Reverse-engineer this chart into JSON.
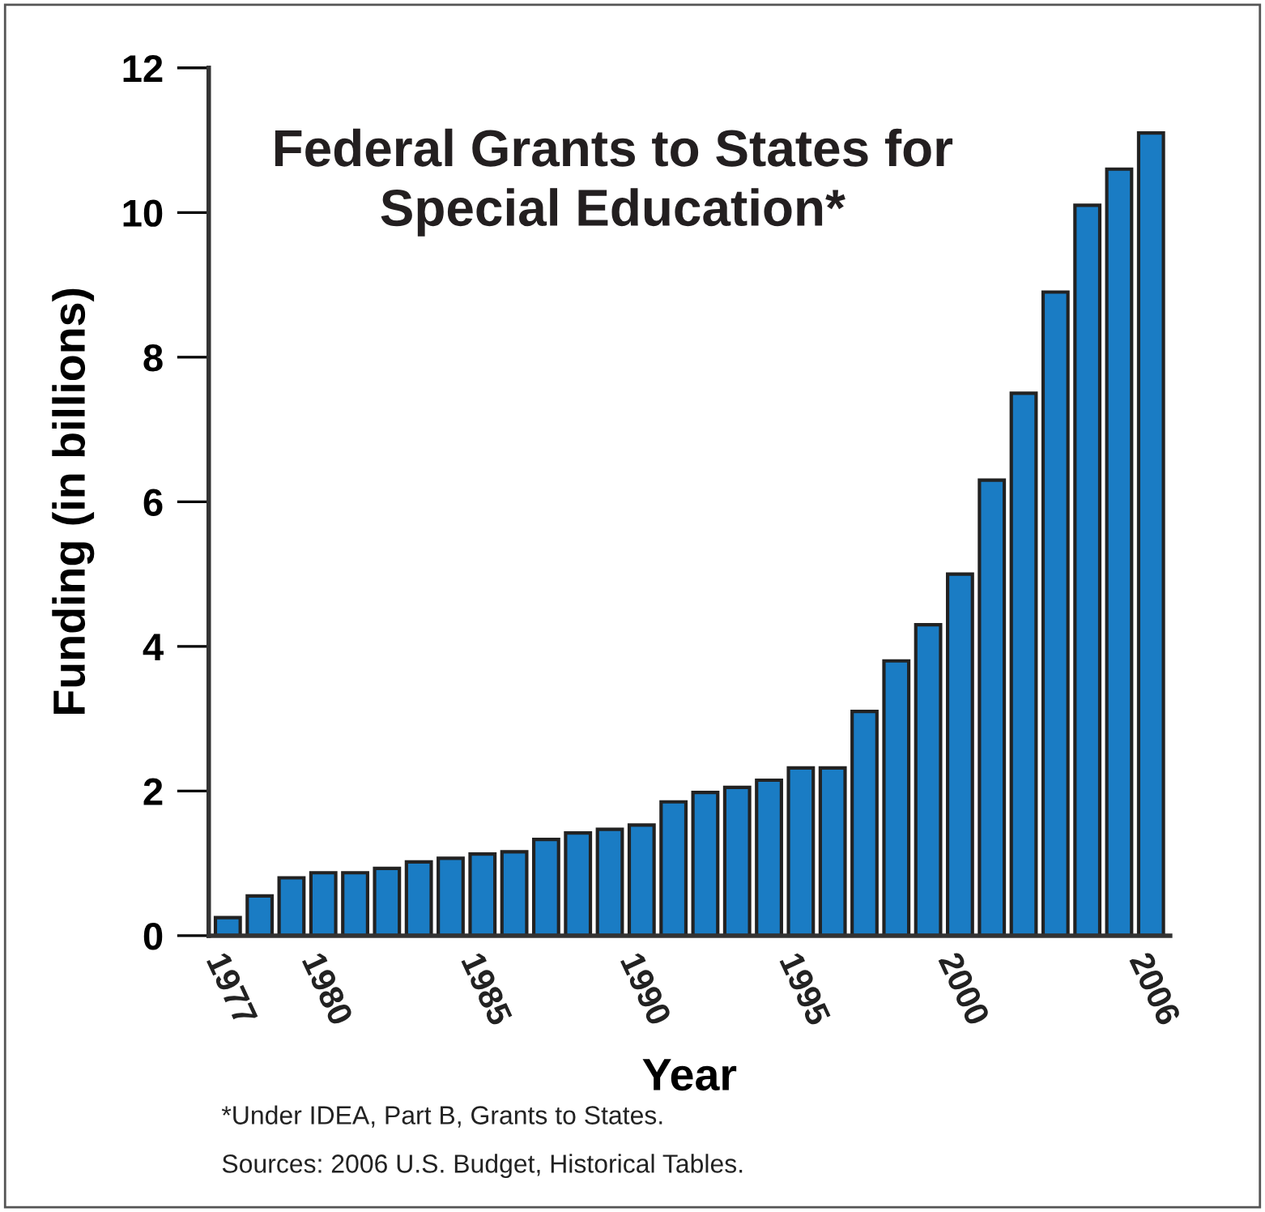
{
  "chart_data": {
    "type": "bar",
    "title": "Federal Grants to States for\nSpecial Education*",
    "xlabel": "Year",
    "ylabel": "Funding (in billions)",
    "categories": [
      "1977",
      null,
      null,
      "1980",
      null,
      null,
      null,
      null,
      "1985",
      null,
      null,
      null,
      null,
      "1990",
      null,
      null,
      null,
      null,
      "1995",
      null,
      null,
      null,
      null,
      "2000",
      null,
      null,
      null,
      null,
      null,
      "2006"
    ],
    "values": [
      0.25,
      0.55,
      0.8,
      0.87,
      0.87,
      0.93,
      1.02,
      1.07,
      1.13,
      1.16,
      1.33,
      1.42,
      1.47,
      1.53,
      1.85,
      1.98,
      2.05,
      2.15,
      2.32,
      2.32,
      3.1,
      3.8,
      4.3,
      5.0,
      6.3,
      7.5,
      8.9,
      10.1,
      10.6,
      11.1
    ],
    "color": "#1a7cc4",
    "ylim": [
      0,
      12
    ],
    "yticks": [
      0,
      2,
      4,
      6,
      8,
      10,
      12
    ],
    "grid": false,
    "legend": false,
    "annotations": [
      "*Under IDEA, Part B, Grants to States.",
      "Sources: 2006 U.S. Budget, Historical Tables."
    ]
  }
}
